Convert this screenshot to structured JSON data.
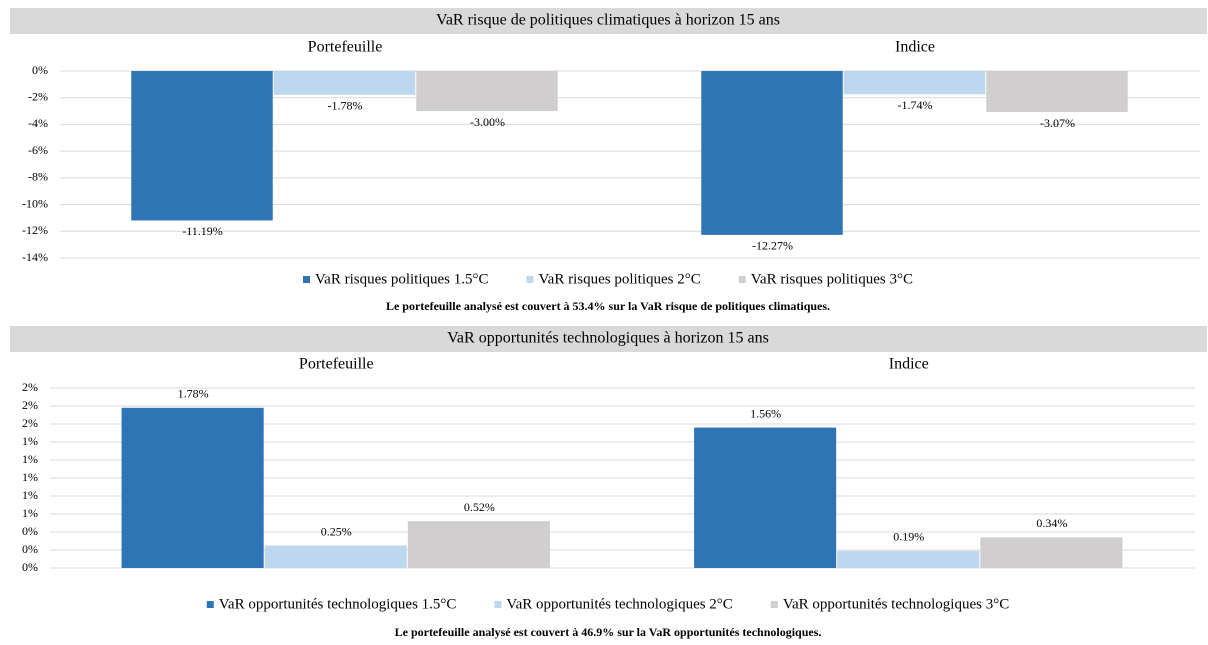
{
  "chart_data": [
    {
      "type": "bar",
      "title": "VaR risque de politiques climatiques à horizon 15 ans",
      "categories": [
        "Portefeuille",
        "Indice"
      ],
      "series": [
        {
          "name": "VaR risques politiques 1.5°C",
          "color": "#2e75b6",
          "values": [
            -11.19,
            -12.27
          ],
          "value_labels": [
            "-11.19%",
            "-12.27%"
          ]
        },
        {
          "name": "VaR risques politiques 2°C",
          "color": "#bdd7ee",
          "values": [
            -1.78,
            -1.74
          ],
          "value_labels": [
            "-1.78%",
            "-1.74%"
          ]
        },
        {
          "name": "VaR risques politiques 3°C",
          "color": "#d0cece",
          "values": [
            -3.0,
            -3.07
          ],
          "value_labels": [
            "-3.00%",
            "-3.07%"
          ]
        }
      ],
      "ylim": [
        -14,
        0
      ],
      "yticks": [
        {
          "value": 0,
          "label": "0%"
        },
        {
          "value": -2,
          "label": "-2%"
        },
        {
          "value": -4,
          "label": "-4%"
        },
        {
          "value": -6,
          "label": "-6%"
        },
        {
          "value": -8,
          "label": "-8%"
        },
        {
          "value": -10,
          "label": "-10%"
        },
        {
          "value": -12,
          "label": "-12%"
        },
        {
          "value": -14,
          "label": "-14%"
        }
      ],
      "grid": true,
      "legend": "bottom",
      "note": "Le portefeuille analysé est couvert à 53.4% sur la VaR risque de politiques climatiques."
    },
    {
      "type": "bar",
      "title": "VaR opportunités technologiques à horizon 15 ans",
      "categories": [
        "Portefeuille",
        "Indice"
      ],
      "series": [
        {
          "name": "VaR opportunités technologiques 1.5°C",
          "color": "#2e75b6",
          "values": [
            1.78,
            1.56
          ],
          "value_labels": [
            "1.78%",
            "1.56%"
          ]
        },
        {
          "name": "VaR opportunités technologiques 2°C",
          "color": "#bdd7ee",
          "values": [
            0.25,
            0.19
          ],
          "value_labels": [
            "0.25%",
            "0.19%"
          ]
        },
        {
          "name": "VaR opportunités technologiques 3°C",
          "color": "#d0cece",
          "values": [
            0.52,
            0.34
          ],
          "value_labels": [
            "0.52%",
            "0.34%"
          ]
        }
      ],
      "ylim": [
        0,
        2
      ],
      "yticks": [
        {
          "value": 0,
          "label": "0%"
        },
        {
          "value": 0.2,
          "label": "0%"
        },
        {
          "value": 0.4,
          "label": "0%"
        },
        {
          "value": 0.6,
          "label": "1%"
        },
        {
          "value": 0.8,
          "label": "1%"
        },
        {
          "value": 1.0,
          "label": "1%"
        },
        {
          "value": 1.2,
          "label": "1%"
        },
        {
          "value": 1.4,
          "label": "1%"
        },
        {
          "value": 1.6,
          "label": "2%"
        },
        {
          "value": 1.8,
          "label": "2%"
        },
        {
          "value": 2.0,
          "label": "2%"
        }
      ],
      "grid": true,
      "legend": "bottom",
      "note": "Le portefeuille analysé est couvert à 46.9% sur la VaR opportunités technologiques."
    }
  ]
}
